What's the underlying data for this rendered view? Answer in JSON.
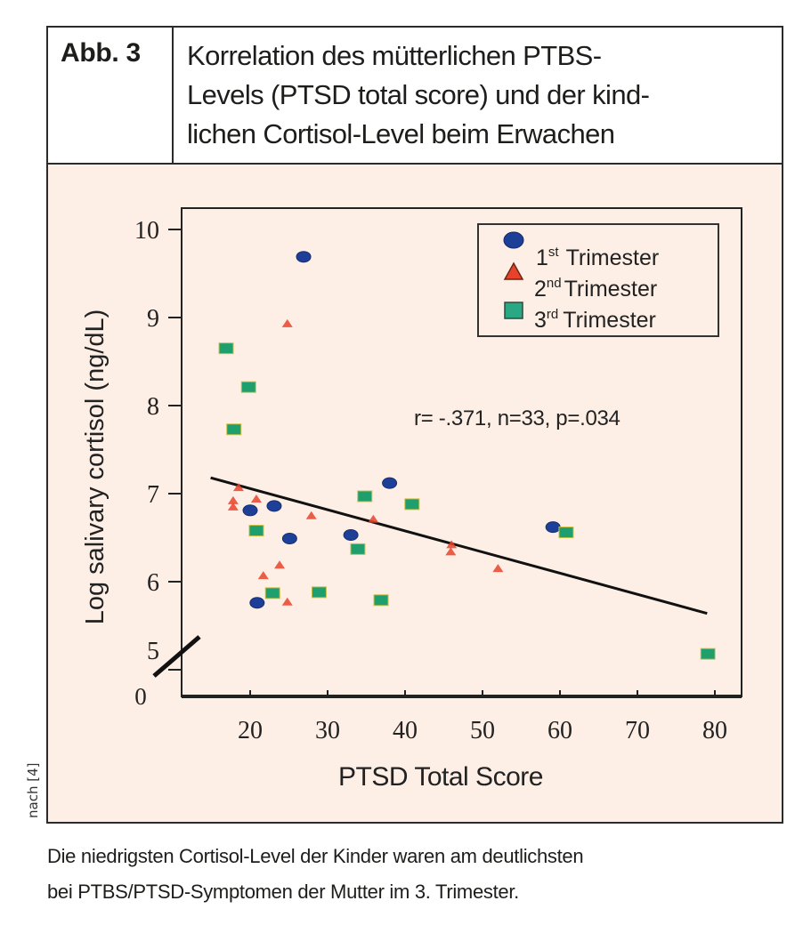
{
  "figure": {
    "label": "Abb. 3",
    "title_lines": [
      "Korrelation des mütterlichen PTBS-",
      "Levels (PTSD total score) und der kind-",
      "lichen Cortisol-Level beim Erwachen"
    ],
    "credit": "nach [4]",
    "caption_lines": [
      "Die niedrigsten Cortisol-Level der Kinder waren am deutlichsten",
      "bei PTBS/PTSD-Symptomen der Mutter im 3. Trimester."
    ],
    "colors": {
      "plot_background": "#fdefe5",
      "first_trimester": "#1d3f97",
      "second_trimester": "#e8432a",
      "third_trimester": "#1f9e6e",
      "regression_line": "#111111"
    }
  },
  "chart_data": {
    "type": "scatter",
    "title": "",
    "xlabel": "PTSD Total Score",
    "ylabel": "Log salivary cortisol (ng/dL)",
    "xlim": [
      11.2,
      83.4
    ],
    "ylim": [
      4.7,
      10.25
    ],
    "x_ticks": [
      20,
      30,
      40,
      50,
      60,
      70,
      80
    ],
    "x_tick_labels": [
      "20",
      "30",
      "40",
      "50",
      "60",
      "70",
      "80"
    ],
    "y_ticks": [
      5,
      6,
      7,
      8,
      9,
      10
    ],
    "y_tick_labels": [
      "5",
      "6",
      "7",
      "8",
      "9",
      "10"
    ],
    "y_axis_break": true,
    "y_axis_origin_label": "0",
    "grid": false,
    "legend_position": "top-right",
    "annotation": "r= -.371, n=33, p=.034",
    "series": [
      {
        "name": "1st Trimester",
        "legend_number": "1",
        "legend_suffix": "st",
        "legend_word": "Trimester",
        "marker": "circle",
        "points": [
          [
            26.9,
            9.69
          ],
          [
            20.0,
            6.81
          ],
          [
            23.1,
            6.86
          ],
          [
            25.1,
            6.49
          ],
          [
            33.0,
            6.53
          ],
          [
            38.0,
            7.12
          ],
          [
            20.9,
            5.76
          ],
          [
            59.1,
            6.62
          ]
        ]
      },
      {
        "name": "2nd Trimester",
        "legend_number": "2",
        "legend_suffix": "nd",
        "legend_word": "Trimester",
        "marker": "triangle",
        "points": [
          [
            24.8,
            8.93
          ],
          [
            18.5,
            7.07
          ],
          [
            17.8,
            6.92
          ],
          [
            17.8,
            6.85
          ],
          [
            20.8,
            6.94
          ],
          [
            27.9,
            6.75
          ],
          [
            23.8,
            6.19
          ],
          [
            21.7,
            6.07
          ],
          [
            24.8,
            5.77
          ],
          [
            35.9,
            6.71
          ],
          [
            46.0,
            6.42
          ],
          [
            45.9,
            6.34
          ],
          [
            52.0,
            6.15
          ]
        ]
      },
      {
        "name": "3rd Trimester",
        "legend_number": "3",
        "legend_suffix": "rd",
        "legend_word": "Trimester",
        "marker": "square",
        "points": [
          [
            16.9,
            8.65
          ],
          [
            19.8,
            8.21
          ],
          [
            17.9,
            7.73
          ],
          [
            20.8,
            6.58
          ],
          [
            22.9,
            5.87
          ],
          [
            28.9,
            5.88
          ],
          [
            34.8,
            6.97
          ],
          [
            33.9,
            6.37
          ],
          [
            40.9,
            6.88
          ],
          [
            36.9,
            5.79
          ],
          [
            60.8,
            6.56
          ],
          [
            79.1,
            5.18
          ]
        ]
      }
    ],
    "regression_line": {
      "x": [
        14.9,
        79.0
      ],
      "y": [
        7.18,
        5.64
      ]
    }
  }
}
